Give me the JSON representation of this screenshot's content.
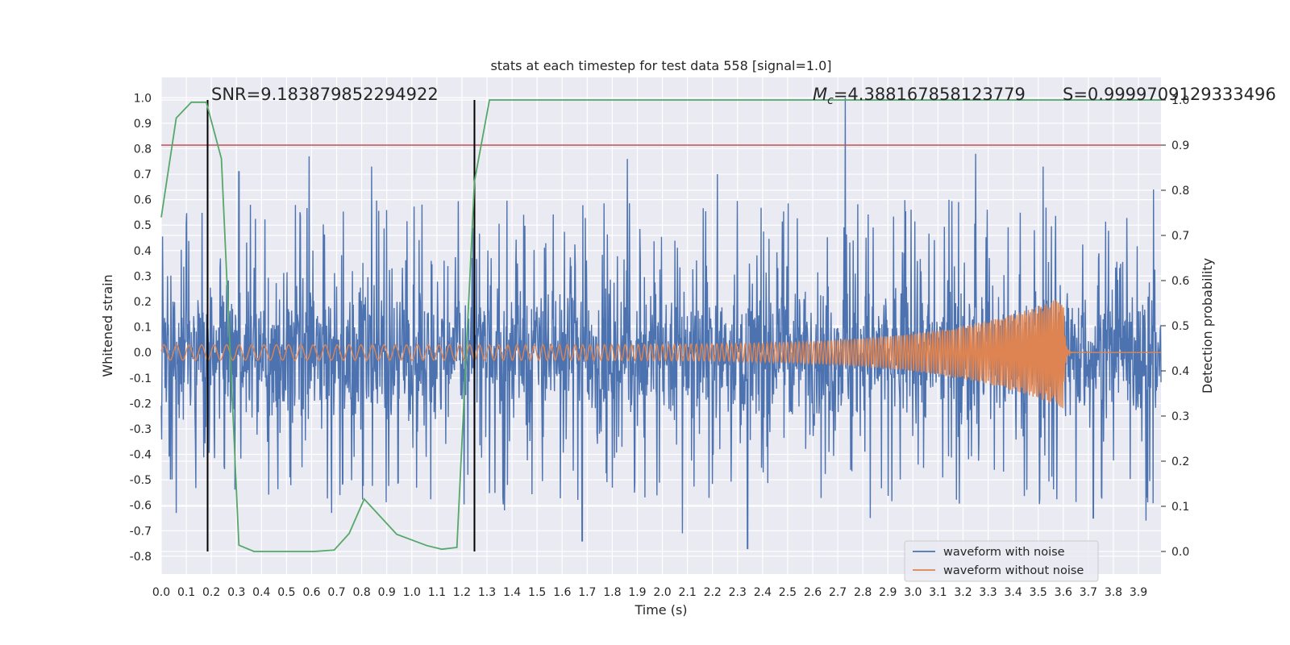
{
  "chart_data": {
    "type": "line",
    "title": "stats at each timestep for test data 558 [signal=1.0]",
    "xlabel": "Time (s)",
    "ylabel": "Whitened strain",
    "ylabel_right": "Detection probability",
    "xlim": [
      0.0,
      3.99
    ],
    "ylim": [
      -0.87,
      1.08
    ],
    "ylim_right": [
      -0.05,
      1.05
    ],
    "x_ticks": [
      "0.0",
      "0.1",
      "0.2",
      "0.3",
      "0.4",
      "0.5",
      "0.6",
      "0.7",
      "0.8",
      "0.9",
      "1.0",
      "1.1",
      "1.2",
      "1.3",
      "1.4",
      "1.5",
      "1.6",
      "1.7",
      "1.8",
      "1.9",
      "2.0",
      "2.1",
      "2.2",
      "2.3",
      "2.4",
      "2.5",
      "2.6",
      "2.7",
      "2.8",
      "2.9",
      "3.0",
      "3.1",
      "3.2",
      "3.3",
      "3.4",
      "3.5",
      "3.6",
      "3.7",
      "3.8",
      "3.9"
    ],
    "y_ticks": [
      "-0.8",
      "-0.7",
      "-0.6",
      "-0.5",
      "-0.4",
      "-0.3",
      "-0.2",
      "-0.1",
      "0.0",
      "0.1",
      "0.2",
      "0.3",
      "0.4",
      "0.5",
      "0.6",
      "0.7",
      "0.8",
      "0.9",
      "1.0"
    ],
    "y_ticks_right": [
      "0.0",
      "0.1",
      "0.2",
      "0.3",
      "0.4",
      "0.5",
      "0.6",
      "0.7",
      "0.8",
      "0.9",
      "1.0"
    ],
    "grid": true,
    "legend_position": "lower-right",
    "series": [
      {
        "name": "waveform with noise",
        "color": "#4c72b0",
        "kind": "noise",
        "baseline_amplitude": 0.2,
        "peak_samples": [
          {
            "x": 0.06,
            "y": -0.63
          },
          {
            "x": 0.31,
            "y": 0.71
          },
          {
            "x": 0.59,
            "y": 0.77
          },
          {
            "x": 0.68,
            "y": -0.63
          },
          {
            "x": 0.84,
            "y": 0.73
          },
          {
            "x": 1.25,
            "y": -0.68
          },
          {
            "x": 1.37,
            "y": -0.62
          },
          {
            "x": 1.68,
            "y": -0.74
          },
          {
            "x": 1.86,
            "y": 0.76
          },
          {
            "x": 2.08,
            "y": -0.71
          },
          {
            "x": 2.22,
            "y": 0.7
          },
          {
            "x": 2.34,
            "y": -0.77
          },
          {
            "x": 2.73,
            "y": 1.0
          },
          {
            "x": 2.83,
            "y": -0.65
          },
          {
            "x": 3.25,
            "y": 0.78
          },
          {
            "x": 3.52,
            "y": 0.73
          },
          {
            "x": 3.72,
            "y": -0.65
          },
          {
            "x": 3.93,
            "y": -0.66
          },
          {
            "x": 3.96,
            "y": 0.64
          }
        ]
      },
      {
        "name": "waveform without noise",
        "color": "#dd8452",
        "kind": "chirp",
        "start_amplitude": 0.03,
        "peak_x": 3.6,
        "peak_amplitude": 0.22,
        "start_frequency_hz": 20,
        "end_frequency_hz": 150
      },
      {
        "name": "",
        "color": "#55a868",
        "axis": "right",
        "x": [
          0.0,
          0.06,
          0.12,
          0.18,
          0.24,
          0.31,
          0.37,
          0.61,
          0.69,
          0.75,
          0.81,
          0.94,
          1.06,
          1.12,
          1.18,
          1.25,
          1.31,
          3.99
        ],
        "y": [
          0.74,
          0.96,
          0.995,
          0.995,
          0.87,
          0.014,
          0.0,
          0.0,
          0.003,
          0.04,
          0.116,
          0.038,
          0.013,
          0.005,
          0.009,
          0.82,
          1.0,
          1.0
        ]
      }
    ],
    "threshold": {
      "axis": "right",
      "y": 0.9,
      "color": "#c44e52"
    },
    "vertical_markers": [
      {
        "x": 0.185,
        "color": "#000000"
      },
      {
        "x": 1.25,
        "color": "#000000"
      }
    ],
    "annotations": {
      "snr": "SNR=9.183879852294922",
      "mc_symbol": "M",
      "mc_subscript": "c",
      "mc_value": "=4.388167858123779",
      "s_label": "S=0.9999709129333496"
    }
  }
}
